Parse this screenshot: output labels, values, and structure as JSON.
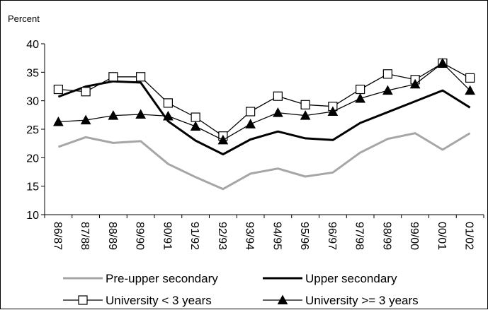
{
  "chart_data": {
    "type": "line",
    "ylabel": "Percent",
    "ylim": [
      10,
      40
    ],
    "yticks": [
      10,
      15,
      20,
      25,
      30,
      35,
      40
    ],
    "grid": false,
    "legend_position": "bottom",
    "categories": [
      "86/87",
      "87/88",
      "88/89",
      "89/90",
      "90/91",
      "91/92",
      "92/93",
      "93/94",
      "94/95",
      "95/96",
      "96/97",
      "97/98",
      "98/99",
      "99/00",
      "00/01",
      "01/02"
    ],
    "series": [
      {
        "name": "Pre-upper secondary",
        "color": "#a6a6a6",
        "marker": "none",
        "values": [
          21.9,
          23.6,
          22.6,
          22.9,
          18.9,
          16.6,
          14.5,
          17.2,
          18.1,
          16.7,
          17.4,
          20.9,
          23.3,
          24.3,
          21.4,
          24.3
        ]
      },
      {
        "name": "Upper secondary",
        "color": "#000000",
        "marker": "none",
        "values": [
          30.7,
          32.5,
          33.4,
          33.2,
          26.4,
          23.0,
          20.6,
          23.2,
          24.6,
          23.4,
          23.1,
          26.1,
          28.0,
          29.9,
          31.8,
          28.8
        ]
      },
      {
        "name": "University < 3 years",
        "color": "#000000",
        "marker": "square",
        "values": [
          32.0,
          31.6,
          34.2,
          34.2,
          29.6,
          27.1,
          23.8,
          28.1,
          30.8,
          29.3,
          29.0,
          32.0,
          34.7,
          33.7,
          36.6,
          34.0
        ]
      },
      {
        "name": "University >= 3 years",
        "color": "#000000",
        "marker": "triangle",
        "values": [
          26.3,
          26.6,
          27.4,
          27.6,
          27.3,
          25.5,
          23.1,
          25.9,
          27.9,
          27.4,
          28.1,
          30.4,
          31.8,
          32.9,
          36.6,
          31.8
        ]
      }
    ]
  }
}
